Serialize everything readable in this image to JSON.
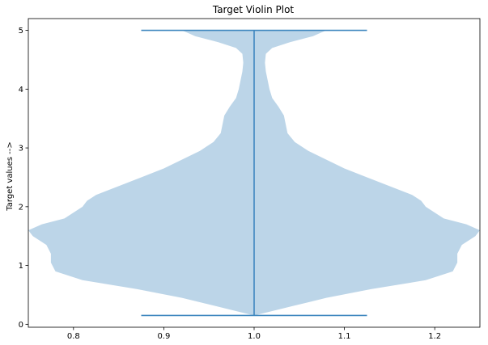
{
  "chart_data": {
    "type": "violin",
    "title": "Target Violin Plot",
    "xlabel": "",
    "ylabel": "Target values  -->",
    "xlim": [
      0.75,
      1.25
    ],
    "ylim": [
      -0.05,
      5.2
    ],
    "x_ticks": [
      0.8,
      0.9,
      1.0,
      1.1,
      1.2
    ],
    "x_tick_labels": [
      "0.8",
      "0.9",
      "1.0",
      "1.1",
      "1.2"
    ],
    "y_ticks": [
      0,
      1,
      2,
      3,
      4,
      5
    ],
    "y_tick_labels": [
      "0",
      "1",
      "2",
      "3",
      "4",
      "5"
    ],
    "grid": false,
    "series": [
      {
        "position": 1.0,
        "min": 0.15,
        "max": 5.0,
        "cap_halfwidth": 0.125,
        "fill_color": "#bcd5e8",
        "line_color": "#3f87bf",
        "profile": [
          {
            "y": 0.15,
            "halfwidth": 0.0
          },
          {
            "y": 0.3,
            "halfwidth": 0.04
          },
          {
            "y": 0.45,
            "halfwidth": 0.08
          },
          {
            "y": 0.6,
            "halfwidth": 0.13
          },
          {
            "y": 0.75,
            "halfwidth": 0.19
          },
          {
            "y": 0.9,
            "halfwidth": 0.22
          },
          {
            "y": 1.05,
            "halfwidth": 0.225
          },
          {
            "y": 1.2,
            "halfwidth": 0.225
          },
          {
            "y": 1.35,
            "halfwidth": 0.23
          },
          {
            "y": 1.5,
            "halfwidth": 0.245
          },
          {
            "y": 1.6,
            "halfwidth": 0.25
          },
          {
            "y": 1.7,
            "halfwidth": 0.235
          },
          {
            "y": 1.8,
            "halfwidth": 0.21
          },
          {
            "y": 1.9,
            "halfwidth": 0.2
          },
          {
            "y": 2.0,
            "halfwidth": 0.19
          },
          {
            "y": 2.1,
            "halfwidth": 0.185
          },
          {
            "y": 2.2,
            "halfwidth": 0.175
          },
          {
            "y": 2.35,
            "halfwidth": 0.15
          },
          {
            "y": 2.5,
            "halfwidth": 0.125
          },
          {
            "y": 2.65,
            "halfwidth": 0.1
          },
          {
            "y": 2.8,
            "halfwidth": 0.08
          },
          {
            "y": 2.95,
            "halfwidth": 0.06
          },
          {
            "y": 3.1,
            "halfwidth": 0.045
          },
          {
            "y": 3.25,
            "halfwidth": 0.037
          },
          {
            "y": 3.4,
            "halfwidth": 0.035
          },
          {
            "y": 3.55,
            "halfwidth": 0.033
          },
          {
            "y": 3.7,
            "halfwidth": 0.027
          },
          {
            "y": 3.85,
            "halfwidth": 0.02
          },
          {
            "y": 4.0,
            "halfwidth": 0.017
          },
          {
            "y": 4.15,
            "halfwidth": 0.015
          },
          {
            "y": 4.3,
            "halfwidth": 0.013
          },
          {
            "y": 4.45,
            "halfwidth": 0.012
          },
          {
            "y": 4.6,
            "halfwidth": 0.013
          },
          {
            "y": 4.7,
            "halfwidth": 0.02
          },
          {
            "y": 4.8,
            "halfwidth": 0.04
          },
          {
            "y": 4.9,
            "halfwidth": 0.065
          },
          {
            "y": 5.0,
            "halfwidth": 0.08
          }
        ]
      }
    ]
  }
}
